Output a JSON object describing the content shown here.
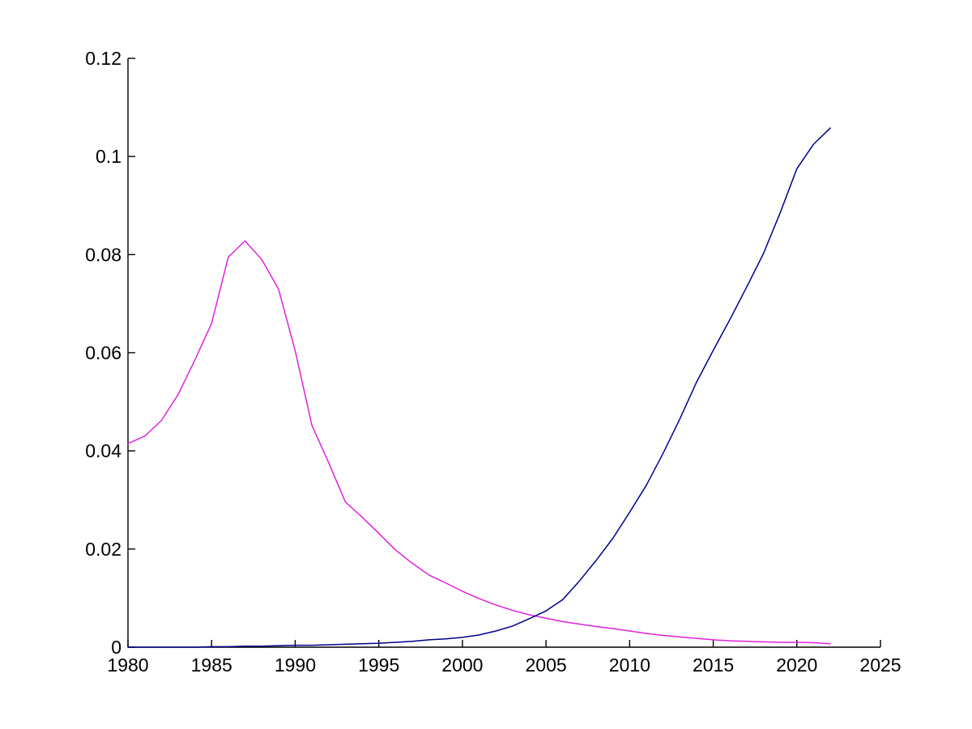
{
  "figure": {
    "background": "#FFFFFF",
    "axis_color": "#000000"
  },
  "chart_data": {
    "type": "line",
    "title": "",
    "xlabel": "",
    "ylabel": "",
    "grid": false,
    "legend": null,
    "xlim": [
      1980,
      2025
    ],
    "ylim": [
      0,
      0.12
    ],
    "xticks": {
      "values": [
        1980,
        1985,
        1990,
        1995,
        2000,
        2005,
        2010,
        2015,
        2020,
        2025
      ],
      "labels": [
        "1980",
        "1985",
        "1990",
        "1995",
        "2000",
        "2005",
        "2010",
        "2015",
        "2020",
        "2025"
      ]
    },
    "yticks": {
      "values": [
        0,
        0.02,
        0.04,
        0.06,
        0.08,
        0.1,
        0.12
      ],
      "labels": [
        "0",
        "0.02",
        "0.04",
        "0.06",
        "0.08",
        "0.1",
        "0.12"
      ]
    },
    "x": [
      1980,
      1981,
      1982,
      1983,
      1984,
      1985,
      1986,
      1987,
      1988,
      1989,
      1990,
      1991,
      1992,
      1993,
      1994,
      1995,
      1996,
      1997,
      1998,
      1999,
      2000,
      2001,
      2002,
      2003,
      2004,
      2005,
      2006,
      2007,
      2008,
      2009,
      2010,
      2011,
      2012,
      2013,
      2014,
      2015,
      2016,
      2017,
      2018,
      2019,
      2020,
      2021,
      2022
    ],
    "series": [
      {
        "name": "magenta-series",
        "color": "#DD22DD",
        "values": [
          0.0415,
          0.043,
          0.0462,
          0.0515,
          0.0585,
          0.066,
          0.0795,
          0.0828,
          0.079,
          0.073,
          0.0604,
          0.0452,
          0.0376,
          0.0296,
          0.0265,
          0.0232,
          0.0198,
          0.0171,
          0.0147,
          0.0131,
          0.0114,
          0.0099,
          0.0086,
          0.0075,
          0.0066,
          0.0059,
          0.0052,
          0.0047,
          0.0042,
          0.0038,
          0.0033,
          0.0028,
          0.0024,
          0.0021,
          0.0018,
          0.0015,
          0.0013,
          0.0012,
          0.0011,
          0.001,
          0.001,
          0.0009,
          0.0007
        ]
      },
      {
        "name": "dark-blue-series",
        "color": "#00008B",
        "values": [
          0.0,
          0.0,
          0.0,
          0.0,
          0.0,
          0.0001,
          0.0001,
          0.0002,
          0.0002,
          0.0003,
          0.0004,
          0.0004,
          0.0005,
          0.0006,
          0.0007,
          0.0008,
          0.001,
          0.0012,
          0.0015,
          0.0017,
          0.002,
          0.0025,
          0.0033,
          0.0043,
          0.0058,
          0.0074,
          0.0097,
          0.0135,
          0.0177,
          0.0222,
          0.0275,
          0.033,
          0.0395,
          0.0465,
          0.054,
          0.0605,
          0.0668,
          0.0734,
          0.0802,
          0.0885,
          0.0975,
          0.1025,
          0.1058
        ]
      }
    ]
  }
}
